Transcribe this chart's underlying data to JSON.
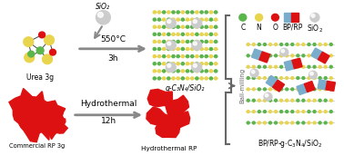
{
  "bg_color": "#ffffff",
  "arrow_color": "#888888",
  "sio2_label": "SiO₂",
  "arrow1_label_top": "550°C",
  "arrow1_label_bot": "3h",
  "urea_label": "Urea 3g",
  "gcn_label": "g-C₃N₄/SiO₂",
  "rp_label": "Commercial RP 3g",
  "hydro_label_top": "Hydrothermal",
  "hydro_label_bot": "12h",
  "hydro_rp_label": "Hydrothermal RP",
  "ball_label": "Ball-milling",
  "final_label": "BP/RP-g·C₃N₄/SiO₂",
  "legend_labels": [
    "C",
    "N",
    "O",
    "BP/RP",
    "SiO₂"
  ],
  "yellow": "#e8d44d",
  "green": "#5ab54b",
  "red": "#dd1111",
  "silver": "#cccccc",
  "blue": "#7aaccc",
  "dark_gray": "#666666"
}
